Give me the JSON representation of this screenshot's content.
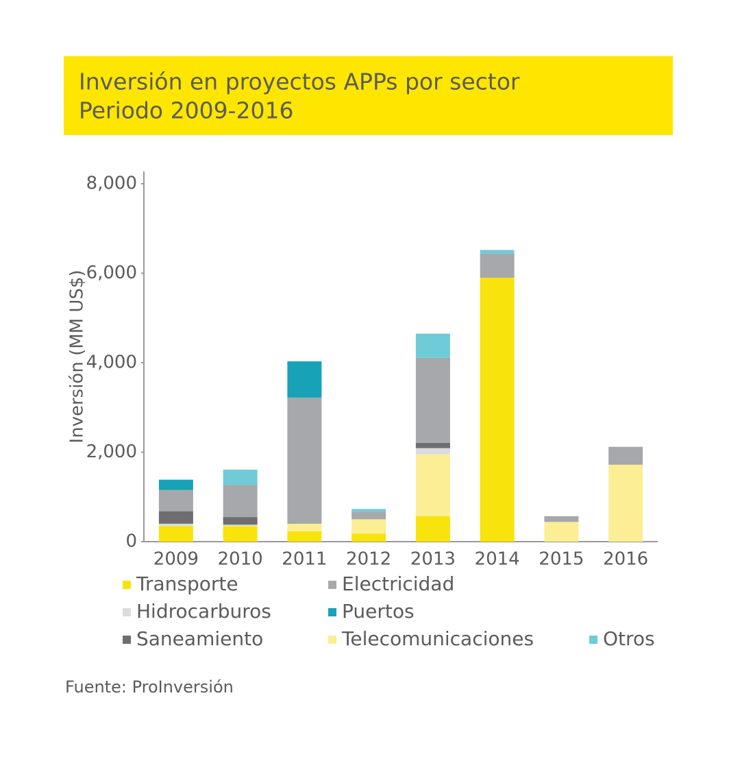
{
  "chart_data": {
    "type": "stacked-bar",
    "title": "Inversión en proyectos APPs por sector",
    "subtitle": "Periodo 2009-2016",
    "y_label": "Inversión (MM US$)",
    "source": "Fuente: ProInversión",
    "categories": [
      "2009",
      "2010",
      "2011",
      "2012",
      "2013",
      "2014",
      "2015",
      "2016"
    ],
    "series": [
      {
        "name": "Transporte",
        "color": "#f8e30c",
        "values": [
          350,
          350,
          230,
          180,
          570,
          5900,
          0,
          0
        ]
      },
      {
        "name": "Telecomunicaciones",
        "color": "#fbee94",
        "values": [
          0,
          0,
          170,
          320,
          1380,
          0,
          440,
          1720
        ]
      },
      {
        "name": "Hidrocarburos",
        "color": "#dcdcdc",
        "values": [
          50,
          30,
          0,
          0,
          140,
          0,
          0,
          0
        ]
      },
      {
        "name": "Saneamiento",
        "color": "#6e6e70",
        "values": [
          280,
          170,
          0,
          0,
          120,
          0,
          0,
          0
        ]
      },
      {
        "name": "Electricidad",
        "color": "#a6a8ab",
        "values": [
          475,
          720,
          2820,
          170,
          1900,
          540,
          130,
          400
        ]
      },
      {
        "name": "Puertos",
        "color": "#17a2b8",
        "values": [
          230,
          0,
          810,
          0,
          0,
          0,
          0,
          0
        ]
      },
      {
        "name": "Otros",
        "color": "#6ecbd7",
        "values": [
          0,
          340,
          0,
          60,
          540,
          80,
          0,
          0
        ]
      }
    ],
    "ylim": [
      0,
      8000
    ],
    "yticks": [
      0,
      {
        "value": 2000,
        "label": "2,000"
      },
      {
        "value": 4000,
        "label": "4,000"
      },
      {
        "value": 6000,
        "label": "6,000"
      },
      {
        "value": 8000,
        "label": "8,000"
      }
    ],
    "grid": false
  }
}
